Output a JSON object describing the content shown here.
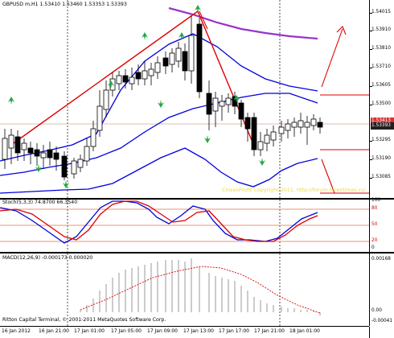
{
  "main": {
    "label": "GBPUSD  m,H1  1.53410 1.53460 1.53353 1.53393",
    "watermark": "ClosesProfit Copyright 2011, http://forum.forextimes.ru/",
    "ticks": [
      "1.54015",
      "1.53910",
      "1.53810",
      "1.53710",
      "1.53605",
      "1.53500",
      "1.53395",
      "1.53295",
      "1.53190",
      "1.53085"
    ],
    "tag_red": "1.53413",
    "tag_dark": "1.53393"
  },
  "stoch": {
    "label": "Stoch(5,3,3) 74.8700 66.3540",
    "ticks": [
      "100",
      "80",
      "50",
      "20",
      "0"
    ]
  },
  "macd": {
    "label": "MACD(12,26,9) -0.000173 0.000020",
    "copyright": "Ritton Capital Terminal, © 2001-2011 MetaQuotes Software Corp.",
    "ticks": [
      "0.00168",
      "0.00",
      "-0.00041"
    ]
  },
  "xaxis": [
    "16 Jan 2012",
    "16 Jan 21:00",
    "17 Jan 01:00",
    "17 Jan 05:00",
    "17 Jan 09:00",
    "17 Jan 13:00",
    "17 Jan 17:00",
    "17 Jan 21:00",
    "18 Jan 01:00"
  ],
  "colors": {
    "bull_candle": "#ffffff",
    "bear_candle": "#000000",
    "bollinger": "#0000dd",
    "trend": "#dd0000",
    "ma_upper": "#9933cc",
    "arrow_marker": "#22aa44",
    "stoch_main": "#0000dd",
    "stoch_signal": "#dd0000",
    "level_line": "#e07040",
    "macd_hist": "#999999",
    "macd_signal": "#dd0000"
  }
}
